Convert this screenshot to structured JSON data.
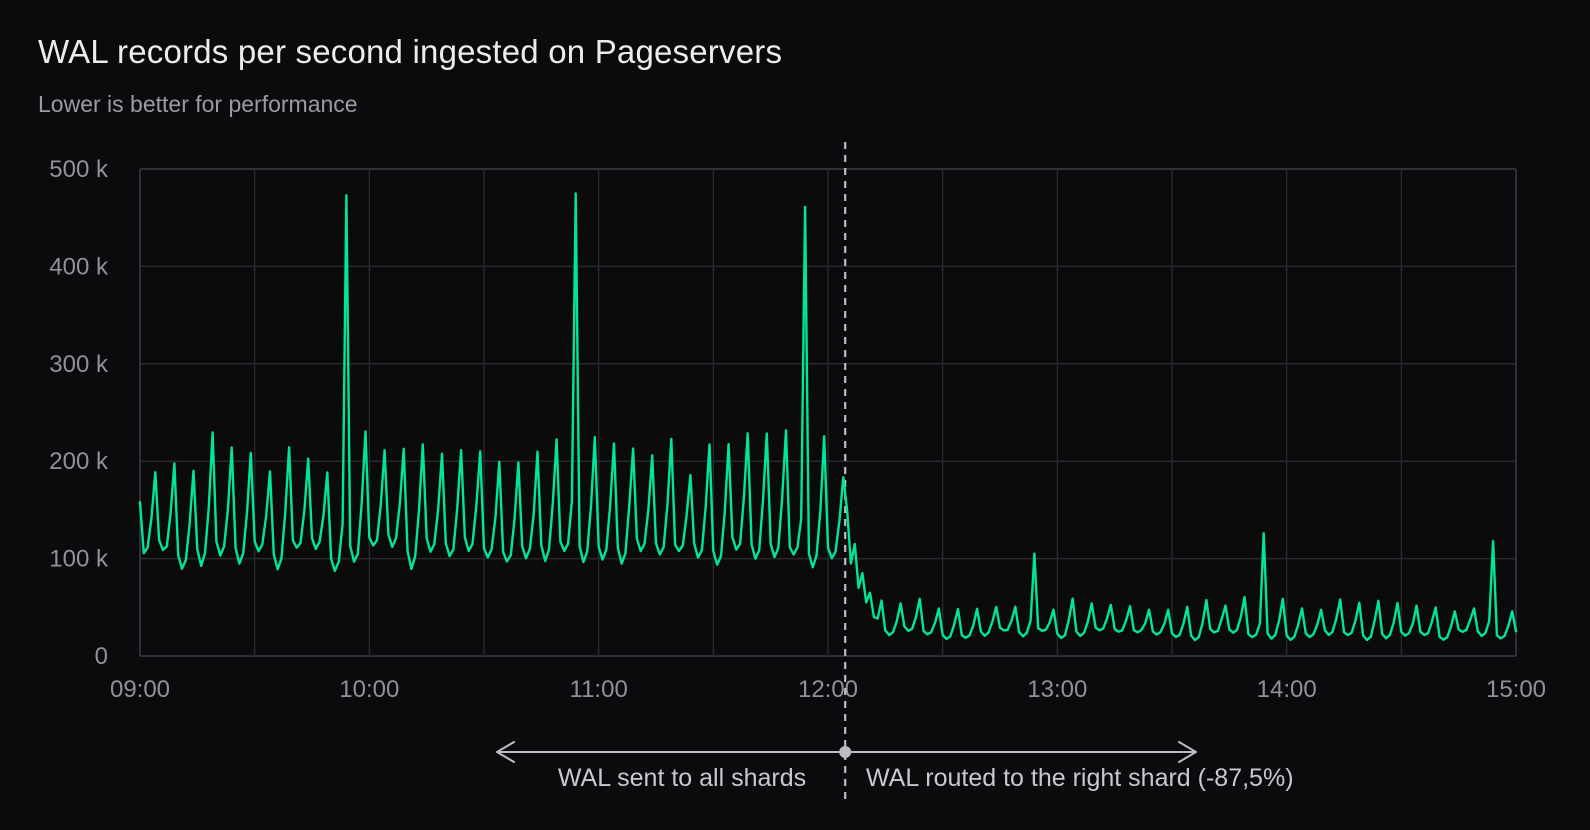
{
  "header": {
    "title": "WAL records per second ingested on Pageservers",
    "subtitle": "Lower is better for performance"
  },
  "annotation": {
    "left_label": "WAL sent to all shards",
    "right_label": "WAL routed to the right shard (-87,5%)"
  },
  "colors": {
    "background": "#0b0b0d",
    "line": "#00e599",
    "gridline": "#28282d",
    "plot_border": "#3b3b42",
    "tick_label": "#90929a",
    "divider": "#bcbcc3",
    "annotation_text": "#c8c8ce"
  },
  "chart_data": {
    "type": "line",
    "title": "WAL records per second ingested on Pageservers",
    "subtitle": "Lower is better for performance",
    "ylabel": "WAL records per second",
    "ylim": [
      0,
      500000
    ],
    "grid": "on",
    "sample_interval_minutes": 1,
    "x_minor_gridline_minutes": 30,
    "y_ticks": [
      {
        "value": 0,
        "label": "0"
      },
      {
        "value": 100000,
        "label": "100 k"
      },
      {
        "value": 200000,
        "label": "200 k"
      },
      {
        "value": 300000,
        "label": "300 k"
      },
      {
        "value": 400000,
        "label": "400 k"
      },
      {
        "value": 500000,
        "label": "500 k"
      }
    ],
    "x_ticks": [
      {
        "minutes": 0,
        "label": "09:00"
      },
      {
        "minutes": 60,
        "label": "10:00"
      },
      {
        "minutes": 120,
        "label": "11:00"
      },
      {
        "minutes": 180,
        "label": "12:00"
      },
      {
        "minutes": 240,
        "label": "13:00"
      },
      {
        "minutes": 300,
        "label": "14:00"
      },
      {
        "minutes": 360,
        "label": "15:00"
      }
    ],
    "divider": {
      "minute": 184.5,
      "time_label": "12:04"
    },
    "segments": [
      {
        "name": "wal-sent-to-all-shards",
        "label": "WAL sent to all shards",
        "start_minute": 0,
        "end_minute": 184,
        "start_value": 158000,
        "cycle_minutes": 5,
        "peak_range": [
          186000,
          232000
        ],
        "trough_range": [
          88000,
          113000
        ],
        "phase_profile": [
          0.12,
          0.0,
          0.08,
          0.45,
          1.0
        ],
        "noise_fraction": 0.04,
        "spikes": [
          {
            "minute": 54,
            "time": "09:54",
            "value": 473000
          },
          {
            "minute": 114,
            "time": "10:54",
            "value": 475000
          },
          {
            "minute": 174,
            "time": "11:54",
            "value": 461000
          }
        ]
      },
      {
        "name": "wal-routed-to-right-shard",
        "label": "WAL routed to the right shard (-87,5%)",
        "start_minute": 185,
        "end_minute": 360,
        "transition_values": [
          150000,
          95000,
          115000,
          70000,
          85000,
          55000,
          65000,
          40000
        ],
        "cycle_minutes": 5,
        "peak_range": [
          46000,
          60000
        ],
        "trough_range": [
          16000,
          26000
        ],
        "phase_profile": [
          0.12,
          0.0,
          0.08,
          0.45,
          1.0
        ],
        "noise_fraction": 0.06,
        "spikes": [
          {
            "minute": 234,
            "time": "12:54",
            "value": 105000
          },
          {
            "minute": 294,
            "time": "13:54",
            "value": 126000
          },
          {
            "minute": 354,
            "time": "14:54",
            "value": 118000
          }
        ]
      }
    ]
  }
}
